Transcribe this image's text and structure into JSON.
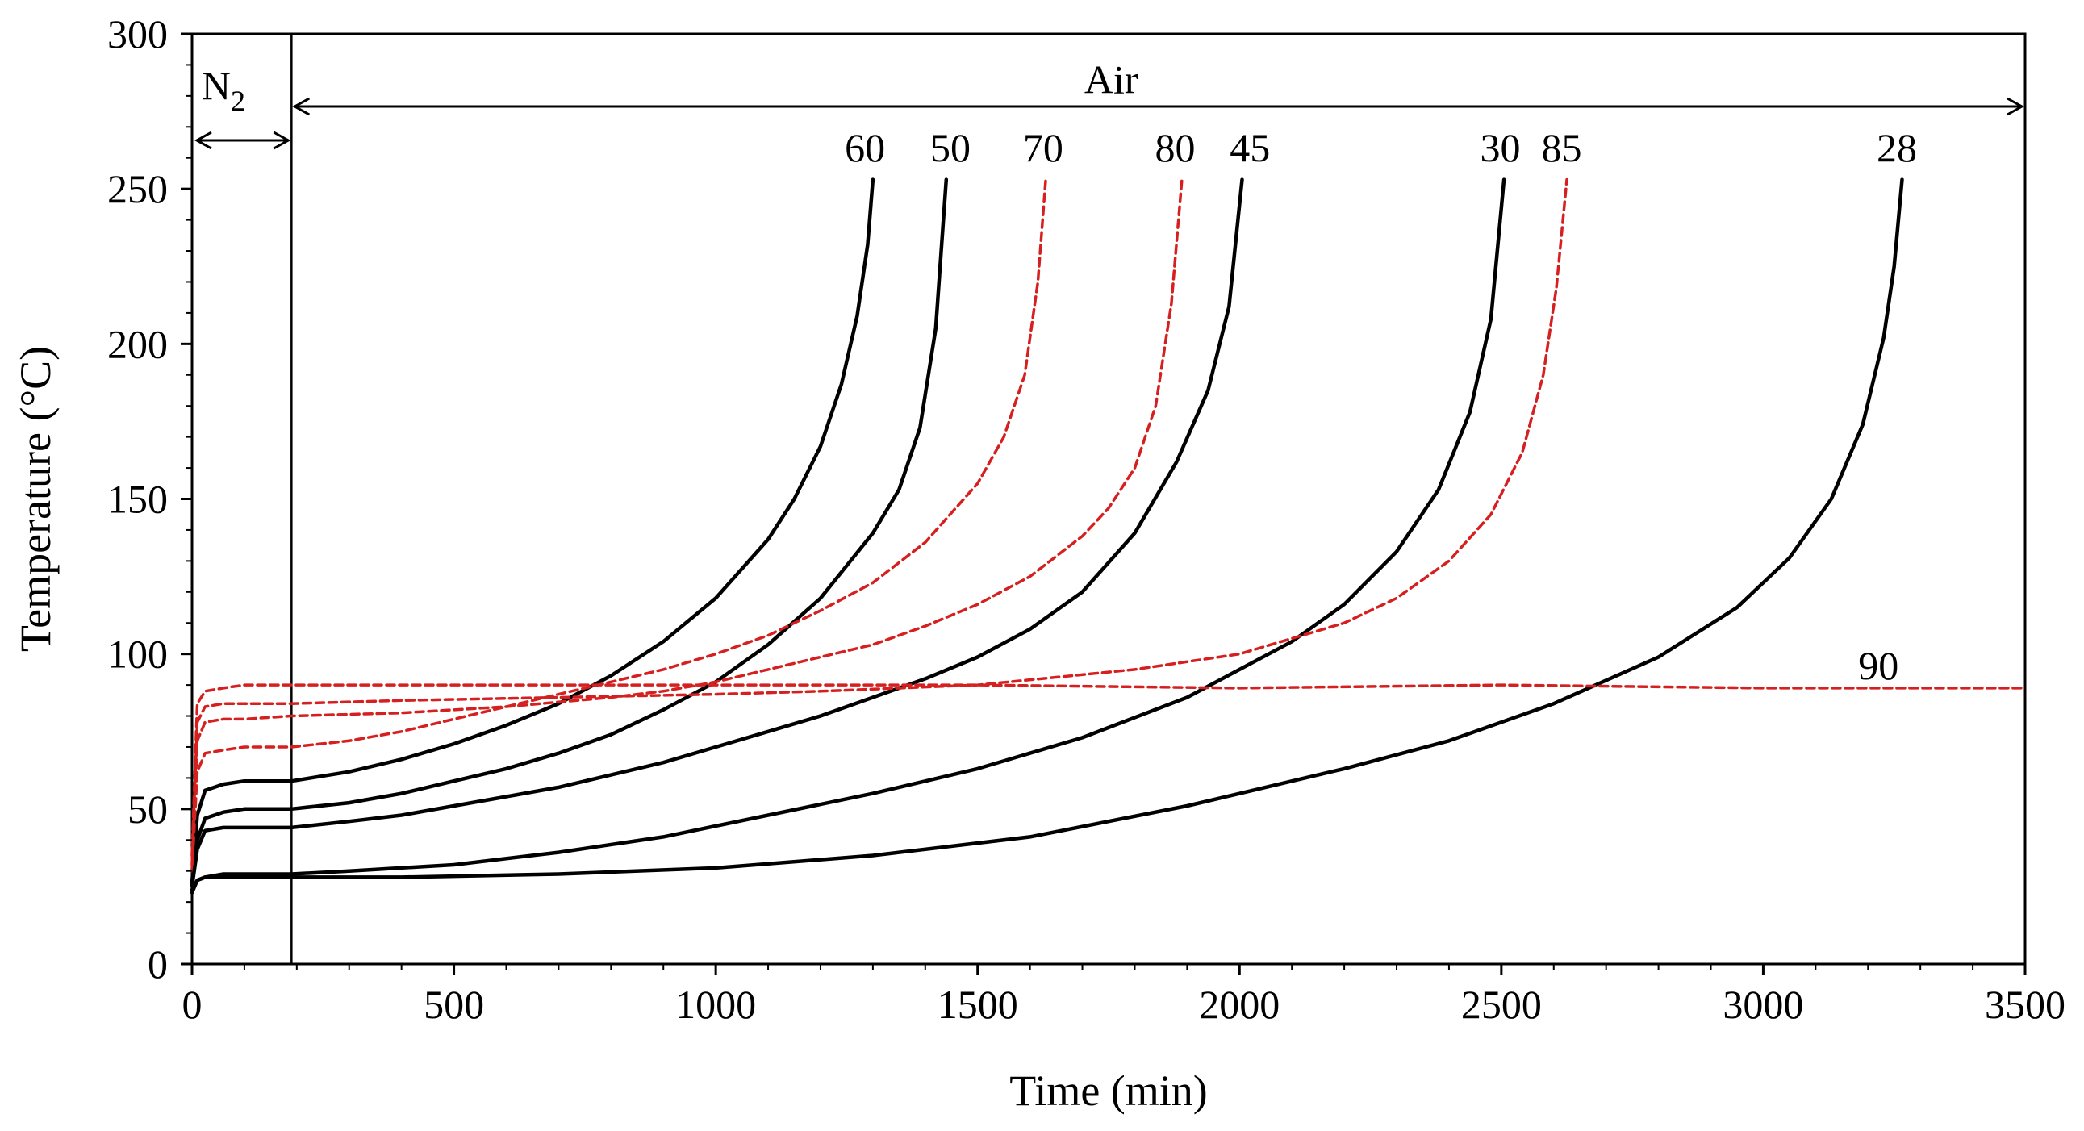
{
  "chart_data": {
    "type": "line",
    "title": "",
    "xlabel": "Time (min)",
    "ylabel": "Temperature (°C)",
    "xlim": [
      0,
      3500
    ],
    "ylim": [
      0,
      300
    ],
    "xticks": [
      0,
      500,
      1000,
      1500,
      2000,
      2500,
      3000,
      3500
    ],
    "yticks": [
      0,
      50,
      100,
      150,
      200,
      250,
      300
    ],
    "grid": false,
    "legend": "none",
    "phase_boundary_x": 190,
    "annotations": [
      {
        "text": "N",
        "subscript": "2",
        "x": 60,
        "y": 282,
        "span": [
          0,
          190
        ]
      },
      {
        "text": "Air",
        "x": 1755,
        "y": 284,
        "span": [
          190,
          3500
        ]
      }
    ],
    "series": [
      {
        "name": "60",
        "style": "solid",
        "color": "#000000",
        "x": [
          0,
          10,
          25,
          60,
          100,
          190,
          300,
          400,
          500,
          600,
          700,
          800,
          900,
          1000,
          1100,
          1150,
          1200,
          1240,
          1270,
          1290,
          1300
        ],
        "y": [
          26,
          48,
          56,
          58,
          59,
          59,
          62,
          66,
          71,
          77,
          84,
          93,
          104,
          118,
          137,
          150,
          167,
          187,
          209,
          232,
          253
        ],
        "label_at": [
          1285,
          262
        ]
      },
      {
        "name": "50",
        "style": "solid",
        "color": "#000000",
        "x": [
          0,
          10,
          25,
          60,
          100,
          190,
          300,
          400,
          500,
          600,
          700,
          800,
          900,
          1000,
          1100,
          1200,
          1300,
          1350,
          1390,
          1420,
          1440
        ],
        "y": [
          26,
          40,
          47,
          49,
          50,
          50,
          52,
          55,
          59,
          63,
          68,
          74,
          82,
          91,
          103,
          118,
          139,
          153,
          173,
          205,
          253
        ],
        "label_at": [
          1448,
          262
        ]
      },
      {
        "name": "70",
        "style": "dashed",
        "color": "#d62020",
        "x": [
          0,
          10,
          25,
          60,
          100,
          190,
          300,
          400,
          500,
          600,
          700,
          800,
          900,
          1000,
          1100,
          1200,
          1300,
          1400,
          1500,
          1550,
          1590,
          1615,
          1630
        ],
        "y": [
          30,
          62,
          68,
          69,
          70,
          70,
          72,
          75,
          79,
          83,
          87,
          91,
          95,
          100,
          106,
          114,
          123,
          136,
          155,
          170,
          190,
          220,
          253
        ],
        "label_at": [
          1625,
          262
        ]
      },
      {
        "name": "80",
        "style": "dashed",
        "color": "#d62020",
        "x": [
          0,
          10,
          25,
          60,
          100,
          190,
          400,
          600,
          800,
          900,
          1000,
          1100,
          1200,
          1300,
          1400,
          1500,
          1600,
          1700,
          1750,
          1800,
          1840,
          1870,
          1890
        ],
        "y": [
          30,
          72,
          78,
          79,
          79,
          80,
          81,
          83,
          86,
          88,
          91,
          95,
          99,
          103,
          109,
          116,
          125,
          138,
          147,
          160,
          180,
          213,
          253
        ],
        "label_at": [
          1877,
          262
        ]
      },
      {
        "name": "45",
        "style": "solid",
        "color": "#000000",
        "x": [
          0,
          10,
          25,
          60,
          100,
          190,
          300,
          400,
          500,
          600,
          700,
          800,
          900,
          1000,
          1100,
          1200,
          1300,
          1400,
          1500,
          1600,
          1700,
          1800,
          1880,
          1940,
          1980,
          2005
        ],
        "y": [
          25,
          37,
          43,
          44,
          44,
          44,
          46,
          48,
          51,
          54,
          57,
          61,
          65,
          70,
          75,
          80,
          86,
          92,
          99,
          108,
          120,
          139,
          162,
          185,
          212,
          253
        ],
        "label_at": [
          2020,
          262
        ]
      },
      {
        "name": "30",
        "style": "solid",
        "color": "#000000",
        "x": [
          0,
          10,
          25,
          60,
          100,
          190,
          300,
          500,
          700,
          900,
          1100,
          1300,
          1500,
          1700,
          1900,
          2100,
          2200,
          2300,
          2380,
          2440,
          2480,
          2505
        ],
        "y": [
          24,
          27,
          28,
          29,
          29,
          29,
          30,
          32,
          36,
          41,
          48,
          55,
          63,
          73,
          86,
          104,
          116,
          133,
          153,
          178,
          208,
          253
        ],
        "label_at": [
          2498,
          262
        ]
      },
      {
        "name": "85",
        "style": "dashed",
        "color": "#d62020",
        "x": [
          0,
          10,
          25,
          60,
          100,
          190,
          400,
          700,
          1000,
          1200,
          1500,
          1800,
          2000,
          2200,
          2300,
          2400,
          2480,
          2540,
          2580,
          2605,
          2625
        ],
        "y": [
          32,
          78,
          83,
          84,
          84,
          84,
          85,
          86,
          87,
          88,
          90,
          95,
          100,
          110,
          118,
          130,
          145,
          165,
          190,
          218,
          253
        ],
        "label_at": [
          2615,
          262
        ]
      },
      {
        "name": "28",
        "style": "solid",
        "color": "#000000",
        "x": [
          0,
          10,
          25,
          60,
          100,
          190,
          400,
          700,
          1000,
          1300,
          1600,
          1900,
          2200,
          2400,
          2600,
          2800,
          2950,
          3050,
          3130,
          3190,
          3230,
          3250,
          3265
        ],
        "y": [
          23,
          27,
          28,
          28,
          28,
          28,
          28,
          29,
          31,
          35,
          41,
          51,
          63,
          72,
          84,
          99,
          115,
          131,
          150,
          174,
          202,
          225,
          253
        ],
        "label_at": [
          3255,
          262
        ]
      },
      {
        "name": "90",
        "style": "dashed",
        "color": "#d62020",
        "x": [
          0,
          10,
          25,
          60,
          100,
          190,
          500,
          1000,
          1500,
          2000,
          2500,
          3000,
          3500
        ],
        "y": [
          35,
          84,
          88,
          89,
          90,
          90,
          90,
          90,
          90,
          89,
          90,
          89,
          89
        ],
        "label_at": [
          3220,
          95
        ]
      }
    ]
  }
}
